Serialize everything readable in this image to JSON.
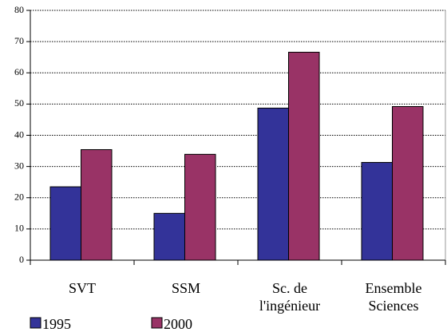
{
  "chart_data": {
    "type": "bar",
    "categories": [
      "SVT",
      "SSM",
      "Sc. de l'ingénieur",
      "Ensemble Sciences"
    ],
    "series": [
      {
        "name": "1995",
        "color": "#333399",
        "values": [
          23.5,
          15,
          48.7,
          31.3
        ]
      },
      {
        "name": "2000",
        "color": "#993366",
        "values": [
          35.4,
          33.9,
          66.6,
          49.2
        ]
      }
    ],
    "ylim": [
      0,
      80
    ],
    "yticks": [
      0,
      10,
      20,
      30,
      40,
      50,
      60,
      70,
      80
    ],
    "grid": true
  }
}
